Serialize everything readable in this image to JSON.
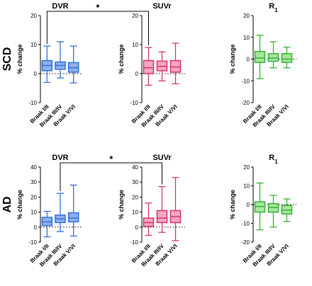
{
  "chart_data": [
    {
      "type": "boxplot",
      "row": "SCD",
      "title": "DVR",
      "ylabel": "% change",
      "ylim": [
        -10,
        20
      ],
      "yticks": [
        -10,
        0,
        10,
        20
      ],
      "color": "#2f6fdc",
      "fill": "#8fb0ee",
      "categories": [
        "Braak I/II",
        "Braak III/IV",
        "Braak V/VI"
      ],
      "boxes": [
        {
          "min": -3,
          "q1": 1,
          "median": 2.8,
          "q3": 4.5,
          "max": 9.5
        },
        {
          "min": -1.5,
          "q1": 1.5,
          "median": 2.8,
          "q3": 4,
          "max": 11
        },
        {
          "min": -3.2,
          "q1": 0.5,
          "median": 2,
          "q3": 3.8,
          "max": 9.5
        }
      ]
    },
    {
      "type": "boxplot",
      "row": "SCD",
      "title": "SUVr",
      "ylabel": "% change",
      "ylim": [
        -10,
        20
      ],
      "yticks": [
        -10,
        0,
        10,
        20
      ],
      "color": "#d6336c",
      "fill": "#f4a7c1",
      "categories": [
        "Braak I/II",
        "Braak III/IV",
        "Braak V/VI"
      ],
      "boxes": [
        {
          "min": -4,
          "q1": 0,
          "median": 2,
          "q3": 4.5,
          "max": 9
        },
        {
          "min": -2.5,
          "q1": 1,
          "median": 2.5,
          "q3": 4.3,
          "max": 7.5
        },
        {
          "min": -3.5,
          "q1": 0.5,
          "median": 2.3,
          "q3": 4.5,
          "max": 10.5
        }
      ]
    },
    {
      "type": "boxplot",
      "row": "SCD",
      "title": "R1",
      "ylabel": "% change",
      "ylim": [
        -20,
        20
      ],
      "yticks": [
        -20,
        -10,
        0,
        10,
        20
      ],
      "color": "#33b233",
      "fill": "#a8e6a0",
      "categories": [
        "Braak I/II",
        "Braak III/IV",
        "Braak V/VI"
      ],
      "boxes": [
        {
          "min": -9,
          "q1": -1.5,
          "median": 0.5,
          "q3": 3.5,
          "max": 11
        },
        {
          "min": -4,
          "q1": -1,
          "median": 0.5,
          "q3": 2.5,
          "max": 8
        },
        {
          "min": -4,
          "q1": -1.5,
          "median": 0,
          "q3": 2.5,
          "max": 5.5
        }
      ]
    },
    {
      "type": "boxplot",
      "row": "AD",
      "title": "DVR",
      "ylabel": "% change",
      "ylim": [
        -10,
        40
      ],
      "yticks": [
        -10,
        0,
        10,
        20,
        30,
        40
      ],
      "color": "#2f6fdc",
      "fill": "#8fb0ee",
      "categories": [
        "Braak I/II",
        "Braak III/IV",
        "Braak V/VI"
      ],
      "boxes": [
        {
          "min": -6.5,
          "q1": 1,
          "median": 3.5,
          "q3": 6.5,
          "max": 10.5
        },
        {
          "min": -3,
          "q1": 3,
          "median": 5.5,
          "q3": 8,
          "max": 22.5
        },
        {
          "min": -6,
          "q1": 3.5,
          "median": 6,
          "q3": 9.5,
          "max": 28
        }
      ]
    },
    {
      "type": "boxplot",
      "row": "AD",
      "title": "SUVr",
      "ylabel": "% change",
      "ylim": [
        -10,
        40
      ],
      "yticks": [
        -10,
        0,
        10,
        20,
        30,
        40
      ],
      "color": "#d6336c",
      "fill": "#f4a7c1",
      "categories": [
        "Braak I/II",
        "Braak III/IV",
        "Braak V/VI"
      ],
      "boxes": [
        {
          "min": -5.5,
          "q1": 0.5,
          "median": 3,
          "q3": 6,
          "max": 16
        },
        {
          "min": -3.5,
          "q1": 3,
          "median": 6,
          "q3": 11,
          "max": 27
        },
        {
          "min": -9,
          "q1": 3,
          "median": 7,
          "q3": 11,
          "max": 33
        }
      ]
    },
    {
      "type": "boxplot",
      "row": "AD",
      "title": "R1",
      "ylabel": "% change",
      "ylim": [
        -20,
        20
      ],
      "yticks": [
        -20,
        -10,
        0,
        10,
        20
      ],
      "color": "#33b233",
      "fill": "#a8e6a0",
      "categories": [
        "Braak I/II",
        "Braak III/IV",
        "Braak V/VI"
      ],
      "boxes": [
        {
          "min": -13.5,
          "q1": -4,
          "median": -1,
          "q3": 1.5,
          "max": 11.5
        },
        {
          "min": -12,
          "q1": -4,
          "median": -1.5,
          "q3": 0.5,
          "max": 5
        },
        {
          "min": -9,
          "q1": -5,
          "median": -3,
          "q3": -0.5,
          "max": 3
        }
      ]
    }
  ],
  "row_labels": [
    "SCD",
    "AD"
  ],
  "significance": [
    {
      "row": "SCD",
      "from_panel": "DVR",
      "from_category": "Braak I/II",
      "to_panel": "SUVr",
      "to_category": "Braak I/II",
      "label": "*"
    },
    {
      "row": "AD",
      "from_panel": "DVR",
      "from_category": "Braak III/IV",
      "to_panel": "SUVr",
      "to_category": "Braak III/IV",
      "label": "*"
    }
  ]
}
